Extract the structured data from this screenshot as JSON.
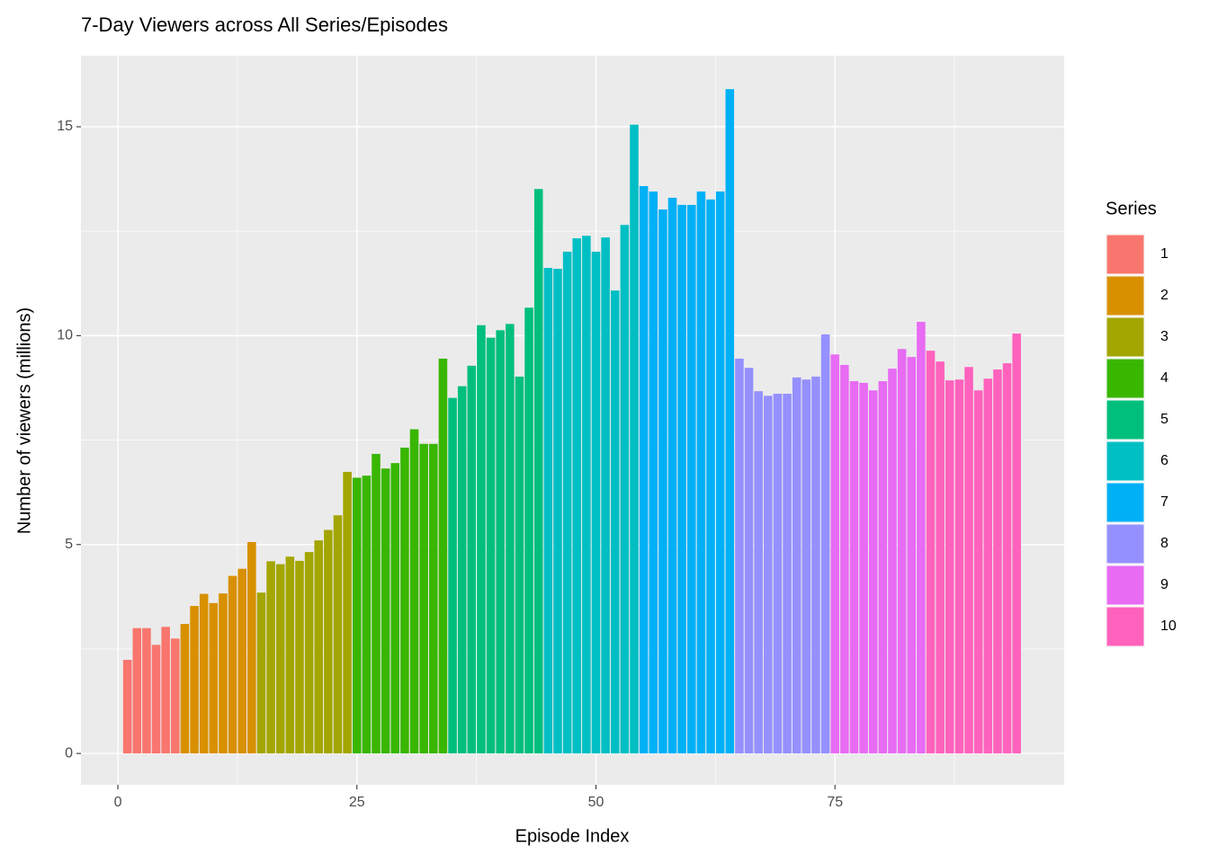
{
  "chart_data": {
    "type": "bar",
    "title": "7-Day Viewers across All Series/Episodes",
    "x_label": "Episode Index",
    "y_label": "Number of viewers (millions)",
    "legend_title": "Series",
    "legend_position": "right",
    "grid": true,
    "minor_grid": true,
    "xlim": [
      -3.86,
      98.97
    ],
    "ylim": [
      -0.75,
      16.7
    ],
    "xticks": [
      0,
      25,
      50,
      75
    ],
    "yticks": [
      0,
      5,
      10,
      15
    ],
    "series": [
      {
        "name": "1",
        "color": "#F8766D",
        "x": [
          1,
          2,
          3,
          4,
          5,
          6
        ],
        "values": [
          2.24,
          3.0,
          3.0,
          2.6,
          3.03,
          2.75
        ]
      },
      {
        "name": "2",
        "color": "#D89000",
        "x": [
          7,
          8,
          9,
          10,
          11,
          12,
          13,
          14
        ],
        "values": [
          3.1,
          3.53,
          3.82,
          3.6,
          3.83,
          4.25,
          4.42,
          5.06
        ]
      },
      {
        "name": "3",
        "color": "#A3A500",
        "x": [
          15,
          16,
          17,
          18,
          19,
          20,
          21,
          22,
          23,
          24
        ],
        "values": [
          3.85,
          4.6,
          4.53,
          4.71,
          4.61,
          4.82,
          5.1,
          5.35,
          5.7,
          6.74
        ]
      },
      {
        "name": "4",
        "color": "#39B600",
        "x": [
          25,
          26,
          27,
          28,
          29,
          30,
          31,
          32,
          33,
          34
        ],
        "values": [
          6.6,
          6.65,
          7.17,
          6.82,
          6.95,
          7.32,
          7.76,
          7.41,
          7.41,
          9.45
        ]
      },
      {
        "name": "5",
        "color": "#00BF7D",
        "x": [
          35,
          36,
          37,
          38,
          39,
          40,
          41,
          42,
          43,
          44
        ],
        "values": [
          8.51,
          8.79,
          9.28,
          10.25,
          9.95,
          10.13,
          10.28,
          9.02,
          10.67,
          13.51
        ]
      },
      {
        "name": "6",
        "color": "#00BFC4",
        "x": [
          45,
          46,
          47,
          48,
          49,
          50,
          51,
          52,
          53,
          54
        ],
        "values": [
          11.62,
          11.6,
          12.01,
          12.33,
          12.39,
          12.01,
          12.35,
          11.08,
          12.65,
          15.05
        ]
      },
      {
        "name": "7",
        "color": "#00B0F6",
        "x": [
          55,
          56,
          57,
          58,
          59,
          60,
          61,
          62,
          63,
          64
        ],
        "values": [
          13.58,
          13.45,
          13.02,
          13.3,
          13.13,
          13.13,
          13.45,
          13.26,
          13.45,
          15.9
        ]
      },
      {
        "name": "8",
        "color": "#9590FF",
        "x": [
          65,
          66,
          67,
          68,
          69,
          70,
          71,
          72,
          73,
          74
        ],
        "values": [
          9.45,
          9.23,
          8.67,
          8.56,
          8.61,
          8.61,
          9.0,
          8.95,
          9.02,
          10.03
        ]
      },
      {
        "name": "9",
        "color": "#E76BF3",
        "x": [
          75,
          76,
          77,
          78,
          79,
          80,
          81,
          82,
          83,
          84
        ],
        "values": [
          9.55,
          9.3,
          8.91,
          8.87,
          8.69,
          8.91,
          9.21,
          9.68,
          9.49,
          10.33
        ]
      },
      {
        "name": "10",
        "color": "#FF62BC",
        "x": [
          85,
          86,
          87,
          88,
          89,
          90,
          91,
          92,
          93,
          94
        ],
        "values": [
          9.64,
          9.38,
          8.93,
          8.95,
          9.25,
          8.69,
          8.97,
          9.19,
          9.34,
          10.05
        ]
      }
    ]
  }
}
